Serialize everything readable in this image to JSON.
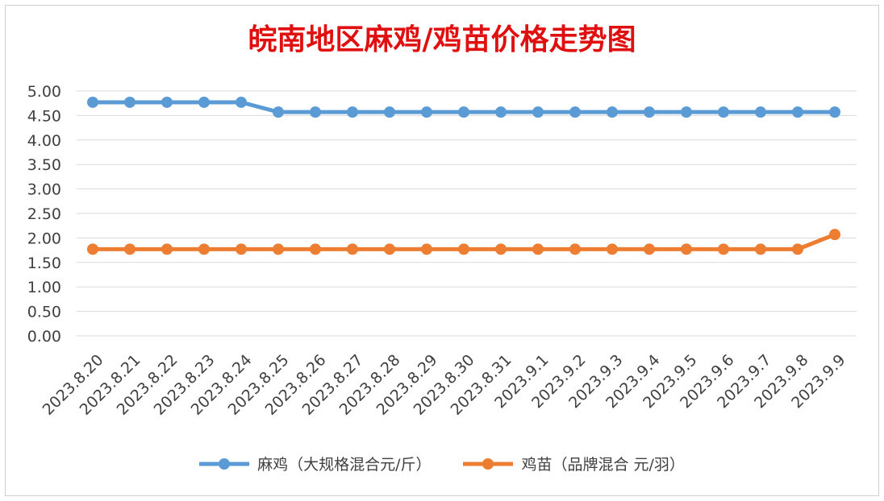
{
  "chart_data": {
    "type": "line",
    "title": "皖南地区麻鸡/鸡苗价格走势图",
    "categories": [
      "2023.8.20",
      "2023.8.21",
      "2023.8.22",
      "2023.8.23",
      "2023.8.24",
      "2023.8.25",
      "2023.8.26",
      "2023.8.27",
      "2023.8.28",
      "2023.8.29",
      "2023.8.30",
      "2023.8.31",
      "2023.9.1",
      "2023.9.2",
      "2023.9.3",
      "2023.9.4",
      "2023.9.5",
      "2023.9.6",
      "2023.9.7",
      "2023.9.8",
      "2023.9.9"
    ],
    "series": [
      {
        "name": "麻鸡（大规格混合元/斤）",
        "color": "#5b9bd5",
        "values": [
          4.77,
          4.77,
          4.77,
          4.77,
          4.77,
          4.57,
          4.57,
          4.57,
          4.57,
          4.57,
          4.57,
          4.57,
          4.57,
          4.57,
          4.57,
          4.57,
          4.57,
          4.57,
          4.57,
          4.57,
          4.57
        ]
      },
      {
        "name": "鸡苗（品牌混合 元/羽）",
        "color": "#ed7d31",
        "values": [
          1.77,
          1.77,
          1.77,
          1.77,
          1.77,
          1.77,
          1.77,
          1.77,
          1.77,
          1.77,
          1.77,
          1.77,
          1.77,
          1.77,
          1.77,
          1.77,
          1.77,
          1.77,
          1.77,
          1.77,
          2.07
        ]
      }
    ],
    "ylim": [
      0,
      5
    ],
    "yticks": [
      "0.00",
      "0.50",
      "1.00",
      "1.50",
      "2.00",
      "2.50",
      "3.00",
      "3.50",
      "4.00",
      "4.50",
      "5.00"
    ],
    "grid": true,
    "legend_position": "bottom"
  }
}
